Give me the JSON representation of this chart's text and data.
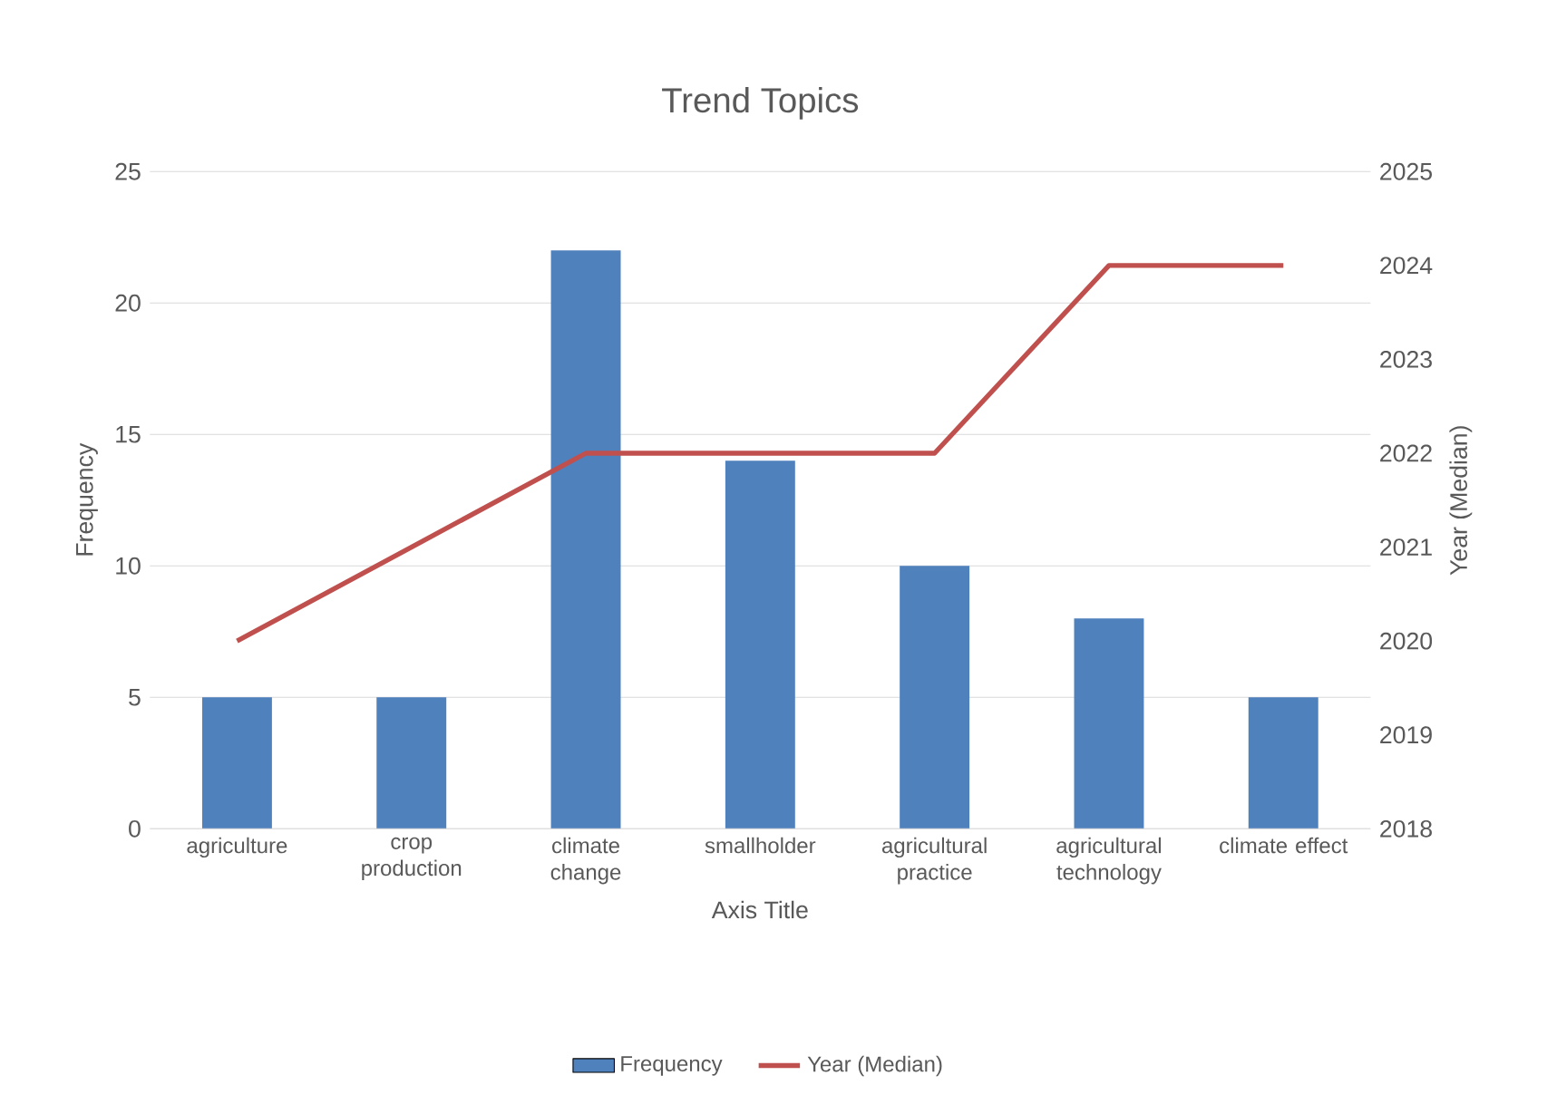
{
  "chart_data": {
    "type": "bar",
    "title": "Trend Topics",
    "xlabel": "Axis Title",
    "ylabel": "Frequency",
    "y2label": "Year (Median)",
    "categories": [
      "agriculture",
      "crop production",
      "climate change",
      "smallholder",
      "agricultural practice",
      "agricultural technology",
      "climate effect"
    ],
    "series": [
      {
        "name": "Frequency",
        "color": "#4f81bd",
        "values": [
          5,
          5,
          22,
          14,
          10,
          8,
          5
        ]
      },
      {
        "name": "Year (Median)",
        "type": "line",
        "axis": "y2",
        "color": "#c0504d",
        "values": [
          2020,
          2021,
          2022,
          2022,
          2022,
          2024,
          2024
        ]
      }
    ],
    "ylim": [
      0,
      25
    ],
    "yticks": [
      0,
      5,
      10,
      15,
      20,
      25
    ],
    "y2lim": [
      2018,
      2025
    ],
    "y2ticks": [
      2018,
      2019,
      2020,
      2021,
      2022,
      2023,
      2024,
      2025
    ],
    "grid": "y",
    "legend": "bottom"
  }
}
